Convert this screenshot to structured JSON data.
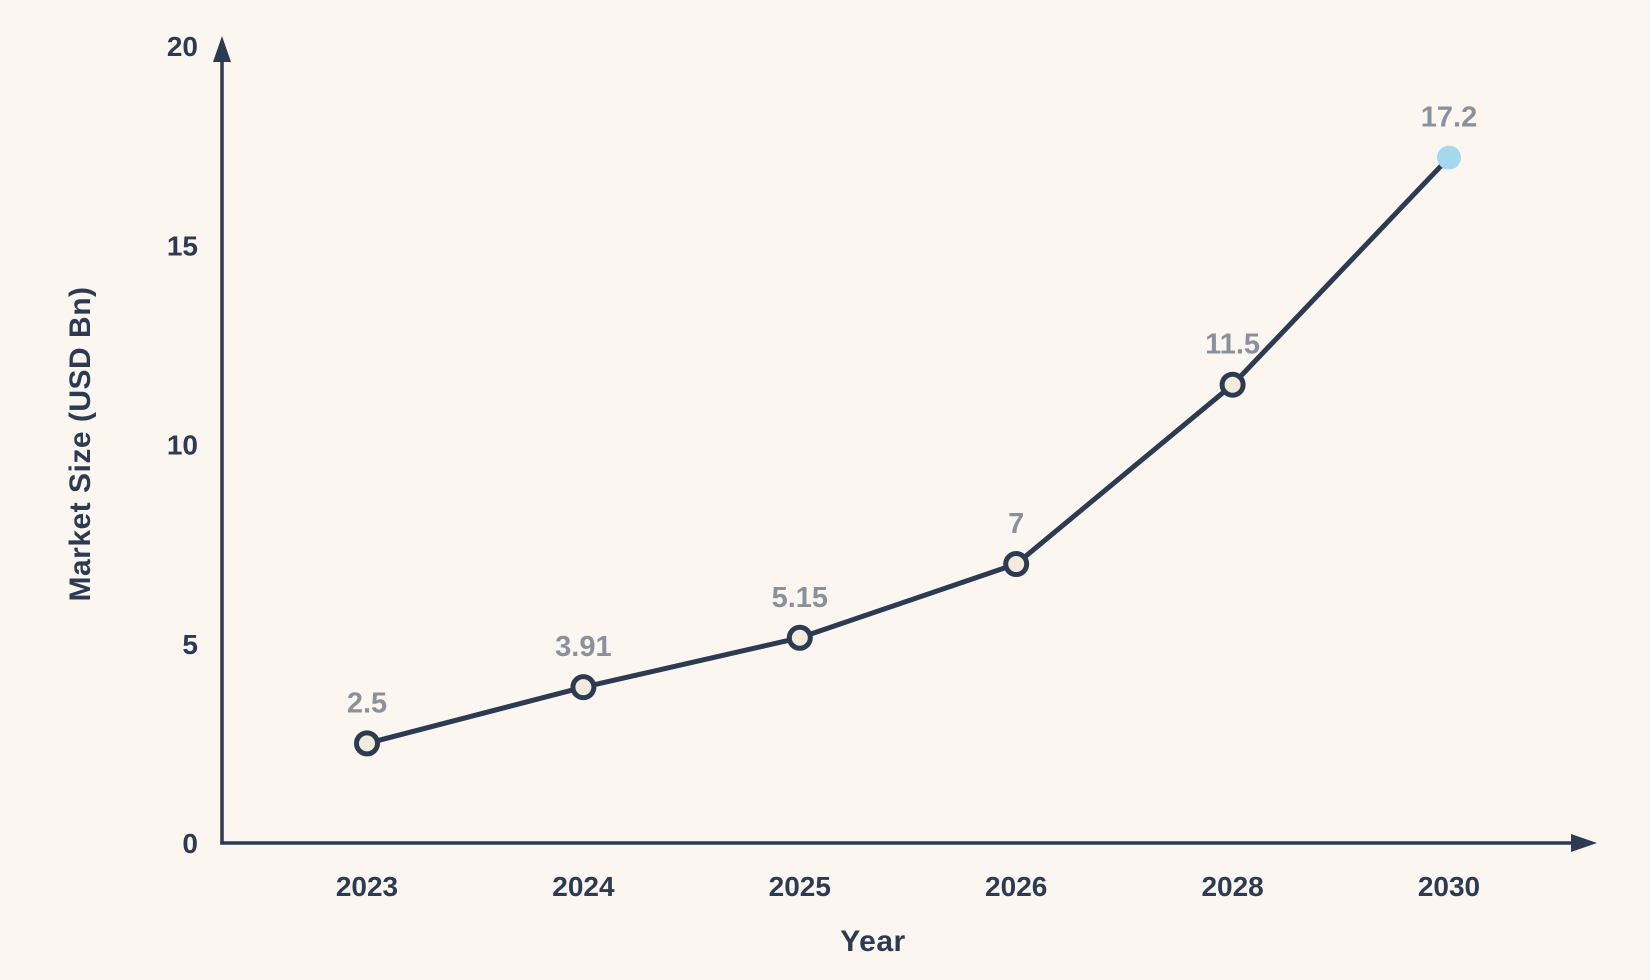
{
  "chart_data": {
    "type": "line",
    "title": "",
    "categories": [
      "2023",
      "2024",
      "2025",
      "2026",
      "2028",
      "2030"
    ],
    "values": [
      2.5,
      3.91,
      5.15,
      7,
      11.5,
      17.2
    ],
    "point_labels": [
      "2.5",
      "3.91",
      "5.15",
      "7",
      "11.5",
      "17.2"
    ],
    "highlight_index": 5,
    "xlabel": "Year",
    "ylabel": "Market Size (USD Bn)",
    "ylim": [
      0,
      20
    ],
    "yticks": [
      0,
      5,
      10,
      15,
      20
    ],
    "grid": false,
    "legend": "none"
  },
  "colors": {
    "background": "#FBF7F0",
    "axis": "#2C3A52",
    "line": "#2C3A52",
    "tick_label": "#2C3A52",
    "axis_title": "#2C3A52",
    "marker_fill": "#F2EBDB",
    "marker_stroke": "#2C3A52",
    "highlight_marker_fill": "#A3D8EF",
    "value_label": "#8A909C"
  }
}
